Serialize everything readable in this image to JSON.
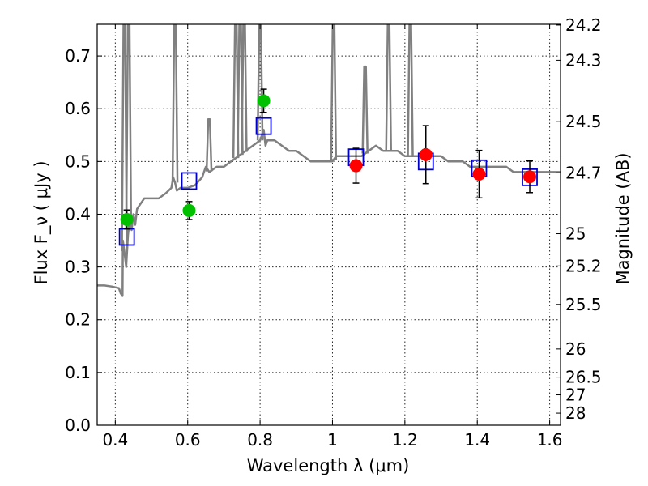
{
  "chart_data": {
    "type": "scatter",
    "title": "",
    "xlabel": "Wavelength  λ (μm)",
    "ylabel": "Flux  F_ν  ( μJy )",
    "y2label": "Magnitude (AB)",
    "xlim": [
      0.35,
      1.63
    ],
    "ylim": [
      0.0,
      0.76
    ],
    "grid": true,
    "x_ticks": [
      "0.4",
      "0.6",
      "0.8",
      "1",
      "1.2",
      "1.4",
      "1.6"
    ],
    "y_ticks": [
      "0.0",
      "0.1",
      "0.2",
      "0.3",
      "0.4",
      "0.5",
      "0.6",
      "0.7"
    ],
    "mag_ticks": [
      "24.2",
      "24.3",
      "24.5",
      "24.7",
      "25",
      "25.2",
      "25.5",
      "26",
      "26.5",
      "27",
      "28"
    ],
    "colors": {
      "spectrum": "#808080",
      "green_points": "#00c000",
      "red_points": "#ff0000",
      "model_boxes": "#0000cc",
      "error_bars": "#000000"
    },
    "series": [
      {
        "kind": "spectrum",
        "x": [
          0.35,
          0.37,
          0.39,
          0.41,
          0.415,
          0.42,
          0.421,
          0.425,
          0.43,
          0.435,
          0.44,
          0.445,
          0.45,
          0.455,
          0.46,
          0.47,
          0.48,
          0.5,
          0.52,
          0.54,
          0.555,
          0.56,
          0.565,
          0.57,
          0.58,
          0.6,
          0.62,
          0.64,
          0.65,
          0.66,
          0.68,
          0.7,
          0.72,
          0.74,
          0.76,
          0.78,
          0.8,
          0.81,
          0.815,
          0.82,
          0.84,
          0.86,
          0.88,
          0.9,
          0.92,
          0.94,
          0.96,
          0.98,
          1.0,
          1.01,
          1.02,
          1.04,
          1.06,
          1.08,
          1.1,
          1.12,
          1.14,
          1.16,
          1.18,
          1.2,
          1.22,
          1.24,
          1.26,
          1.28,
          1.3,
          1.32,
          1.34,
          1.36,
          1.38,
          1.4,
          1.42,
          1.44,
          1.46,
          1.48,
          1.5,
          1.52,
          1.54,
          1.56,
          1.58,
          1.6,
          1.63
        ],
        "y": [
          0.265,
          0.265,
          0.263,
          0.26,
          0.25,
          0.245,
          0.35,
          0.33,
          0.3,
          0.36,
          0.39,
          0.37,
          0.4,
          0.38,
          0.41,
          0.42,
          0.43,
          0.43,
          0.43,
          0.44,
          0.45,
          0.47,
          0.46,
          0.445,
          0.45,
          0.45,
          0.455,
          0.47,
          0.49,
          0.48,
          0.49,
          0.49,
          0.5,
          0.51,
          0.52,
          0.53,
          0.54,
          0.56,
          0.53,
          0.54,
          0.54,
          0.53,
          0.52,
          0.52,
          0.51,
          0.5,
          0.5,
          0.5,
          0.5,
          0.51,
          0.51,
          0.51,
          0.51,
          0.51,
          0.52,
          0.53,
          0.52,
          0.52,
          0.52,
          0.51,
          0.51,
          0.51,
          0.51,
          0.51,
          0.51,
          0.5,
          0.5,
          0.5,
          0.49,
          0.49,
          0.49,
          0.49,
          0.49,
          0.49,
          0.48,
          0.48,
          0.48,
          0.48,
          0.48,
          0.48,
          0.48
        ]
      },
      {
        "kind": "spectrum-emission-lines",
        "lines": [
          {
            "x": 0.425,
            "peak": 0.76
          },
          {
            "x": 0.437,
            "peak": 0.76
          },
          {
            "x": 0.565,
            "peak": 0.76
          },
          {
            "x": 0.659,
            "peak": 0.58
          },
          {
            "x": 0.733,
            "peak": 0.76
          },
          {
            "x": 0.745,
            "peak": 0.76
          },
          {
            "x": 0.756,
            "peak": 0.76
          },
          {
            "x": 0.8,
            "peak": 0.76
          },
          {
            "x": 1.003,
            "peak": 0.76
          },
          {
            "x": 1.09,
            "peak": 0.68
          },
          {
            "x": 1.155,
            "peak": 0.76
          },
          {
            "x": 1.215,
            "peak": 0.76
          }
        ]
      },
      {
        "kind": "model-boxes",
        "x": [
          0.432,
          0.604,
          0.81,
          1.065,
          1.258,
          1.405,
          1.545
        ],
        "y": [
          0.357,
          0.463,
          0.567,
          0.508,
          0.5,
          0.487,
          0.47
        ]
      },
      {
        "kind": "observed-green",
        "x": [
          0.432,
          0.604,
          0.81
        ],
        "y": [
          0.39,
          0.407,
          0.615
        ],
        "err": [
          0.018,
          0.017,
          0.022
        ]
      },
      {
        "kind": "observed-red",
        "x": [
          1.065,
          1.258,
          1.405,
          1.545
        ],
        "y": [
          0.492,
          0.513,
          0.476,
          0.471
        ],
        "err": [
          0.033,
          0.055,
          0.045,
          0.03
        ]
      }
    ]
  }
}
